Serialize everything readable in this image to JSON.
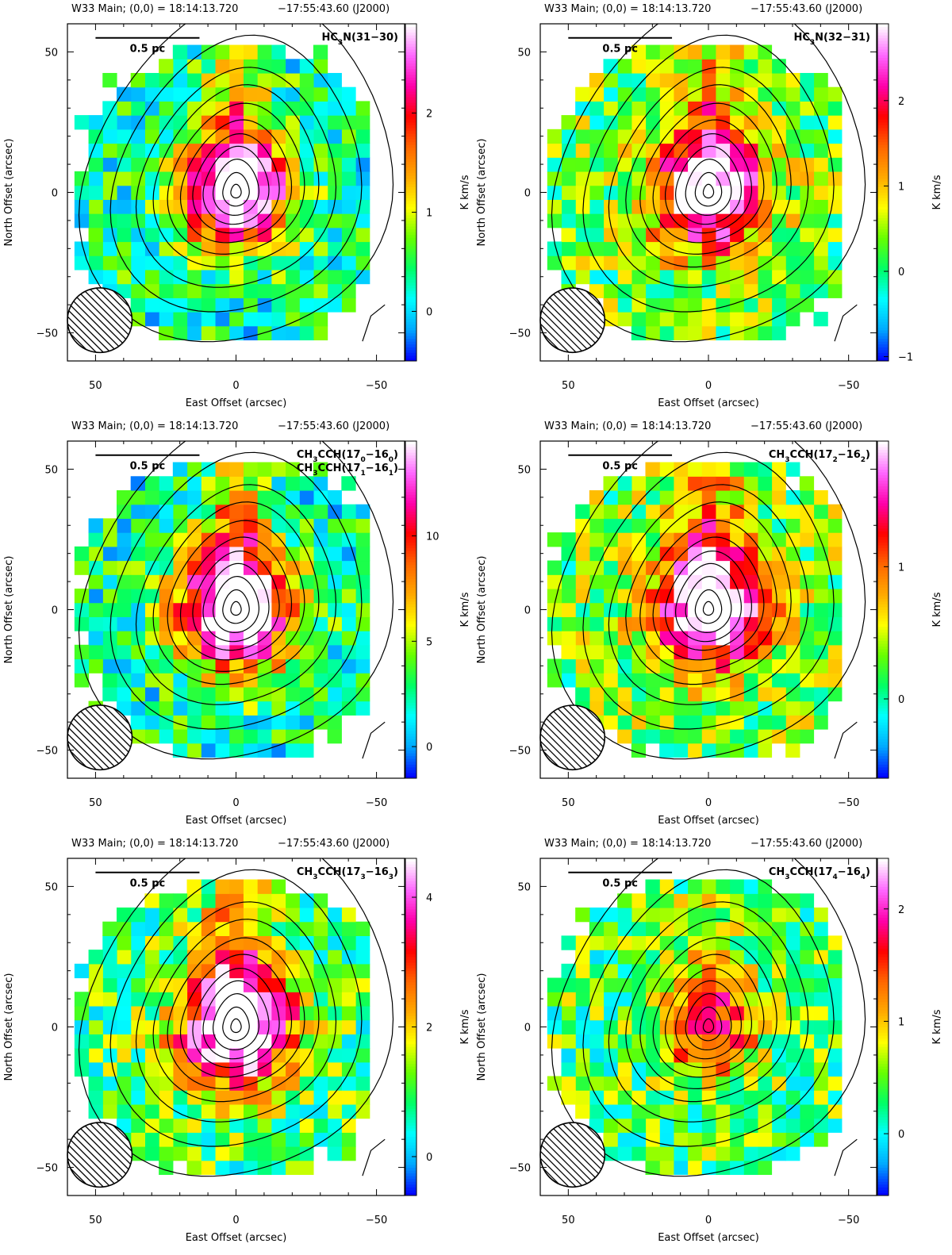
{
  "figure": {
    "header_source": "W33 Main; (0,0) = 18:14:13.720",
    "header_coord": "−17:55:43.60 (J2000)",
    "xlabel": "East Offset (arcsec)",
    "ylabel": "North Offset (arcsec)",
    "colorbar_label": "K km/s",
    "scalebar_label": "0.5 pc"
  },
  "colors": {
    "colormap": [
      "#0000ff",
      "#00aaff",
      "#00ffff",
      "#00ff66",
      "#66ff00",
      "#ffff00",
      "#ffaa00",
      "#ff6600",
      "#ff0000",
      "#ff00aa",
      "#ff66ff",
      "#ffffff"
    ],
    "contour": "#000000",
    "frame": "#000000"
  },
  "chart_data": [
    {
      "type": "heatmap",
      "title": "HC3N(31−30)",
      "label_main": "HC",
      "label_sub1": "3",
      "label_mid": "N(31−30)",
      "label_sub2": "",
      "label_end": "",
      "xlim": [
        60,
        -60
      ],
      "ylim": [
        -60,
        60
      ],
      "xticks": [
        50,
        0,
        -50
      ],
      "xtick_labels": [
        "50",
        "0",
        "−50"
      ],
      "yticks": [
        50,
        0,
        -50
      ],
      "ytick_labels": [
        "50",
        "0",
        "−50"
      ],
      "cmin": -0.5,
      "cmax": 2.9,
      "cticks": [
        0,
        1,
        2
      ],
      "ctick_labels": [
        "0",
        "1",
        "2"
      ],
      "peak": 2.8,
      "peak_width": 14,
      "background": 0.3,
      "seed": 11
    },
    {
      "type": "heatmap",
      "title": "HC3N(32−31)",
      "label_main": "HC",
      "label_sub1": "3",
      "label_mid": "N(32−31)",
      "label_sub2": "",
      "label_end": "",
      "xlim": [
        60,
        -60
      ],
      "ylim": [
        -60,
        60
      ],
      "xticks": [
        50,
        0,
        -50
      ],
      "xtick_labels": [
        "50",
        "0",
        "−50"
      ],
      "yticks": [
        50,
        0,
        -50
      ],
      "ytick_labels": [
        "50",
        "0",
        "−50"
      ],
      "cmin": -1.05,
      "cmax": 2.9,
      "cticks": [
        -1,
        0,
        1,
        2
      ],
      "ctick_labels": [
        "−1",
        "0",
        "1",
        "2"
      ],
      "peak": 2.8,
      "peak_width": 14,
      "background": 0.3,
      "seed": 23
    },
    {
      "type": "heatmap",
      "title": "CH3CCH(170−160) / CH3CCH(171−161)",
      "label_main": "CH",
      "label_sub1": "3",
      "label_mid": "CCH(17",
      "label_sub2": "0",
      "label_end": "−16",
      "label_sub3": "0",
      "label_close": ")",
      "label2_main": "CH",
      "label2_sub1": "3",
      "label2_mid": "CCH(17",
      "label2_sub2": "1",
      "label2_end": "−16",
      "label2_sub3": "1",
      "label2_close": ")",
      "xlim": [
        60,
        -60
      ],
      "ylim": [
        -60,
        60
      ],
      "xticks": [
        50,
        0,
        -50
      ],
      "xtick_labels": [
        "50",
        "0",
        "−50"
      ],
      "yticks": [
        50,
        0,
        -50
      ],
      "ytick_labels": [
        "50",
        "0",
        "−50"
      ],
      "cmin": -1.5,
      "cmax": 14.5,
      "cticks": [
        0,
        5,
        10
      ],
      "ctick_labels": [
        "0",
        "5",
        "10"
      ],
      "peak": 14,
      "peak_width": 15,
      "background": 2.2,
      "seed": 37
    },
    {
      "type": "heatmap",
      "title": "CH3CCH(172−162)",
      "label_main": "CH",
      "label_sub1": "3",
      "label_mid": "CCH(17",
      "label_sub2": "2",
      "label_end": "−16",
      "label_sub3": "2",
      "label_close": ")",
      "xlim": [
        60,
        -60
      ],
      "ylim": [
        -60,
        60
      ],
      "xticks": [
        50,
        0,
        -50
      ],
      "xtick_labels": [
        "50",
        "0",
        "−50"
      ],
      "yticks": [
        50,
        0,
        -50
      ],
      "ytick_labels": [
        "50",
        "0",
        "−50"
      ],
      "cmin": -0.6,
      "cmax": 1.95,
      "cticks": [
        0,
        1
      ],
      "ctick_labels": [
        "0",
        "1"
      ],
      "peak": 1.9,
      "peak_width": 14,
      "background": 0.3,
      "seed": 51
    },
    {
      "type": "heatmap",
      "title": "CH3CCH(173−163)",
      "label_main": "CH",
      "label_sub1": "3",
      "label_mid": "CCH(17",
      "label_sub2": "3",
      "label_end": "−16",
      "label_sub3": "3",
      "label_close": ")",
      "xlim": [
        60,
        -60
      ],
      "ylim": [
        -60,
        60
      ],
      "xticks": [
        50,
        0,
        -50
      ],
      "xtick_labels": [
        "50",
        "0",
        "−50"
      ],
      "yticks": [
        50,
        0,
        -50
      ],
      "ytick_labels": [
        "50",
        "0",
        "−50"
      ],
      "cmin": -0.6,
      "cmax": 4.6,
      "cticks": [
        0,
        2,
        4
      ],
      "ctick_labels": [
        "0",
        "2",
        "4"
      ],
      "peak": 4.5,
      "peak_width": 14,
      "background": 1.0,
      "seed": 67
    },
    {
      "type": "heatmap",
      "title": "CH3CCH(174−164)",
      "label_main": "CH",
      "label_sub1": "3",
      "label_mid": "CCH(17",
      "label_sub2": "4",
      "label_end": "−16",
      "label_sub3": "4",
      "label_close": ")",
      "xlim": [
        60,
        -60
      ],
      "ylim": [
        -60,
        60
      ],
      "xticks": [
        50,
        0,
        -50
      ],
      "xtick_labels": [
        "50",
        "0",
        "−50"
      ],
      "yticks": [
        50,
        0,
        -50
      ],
      "ytick_labels": [
        "50",
        "0",
        "−50"
      ],
      "cmin": -0.55,
      "cmax": 2.45,
      "cticks": [
        0,
        1,
        2
      ],
      "ctick_labels": [
        "0",
        "1",
        "2"
      ],
      "peak": 1.2,
      "peak_width": 12,
      "background": 0.4,
      "seed": 79
    }
  ]
}
